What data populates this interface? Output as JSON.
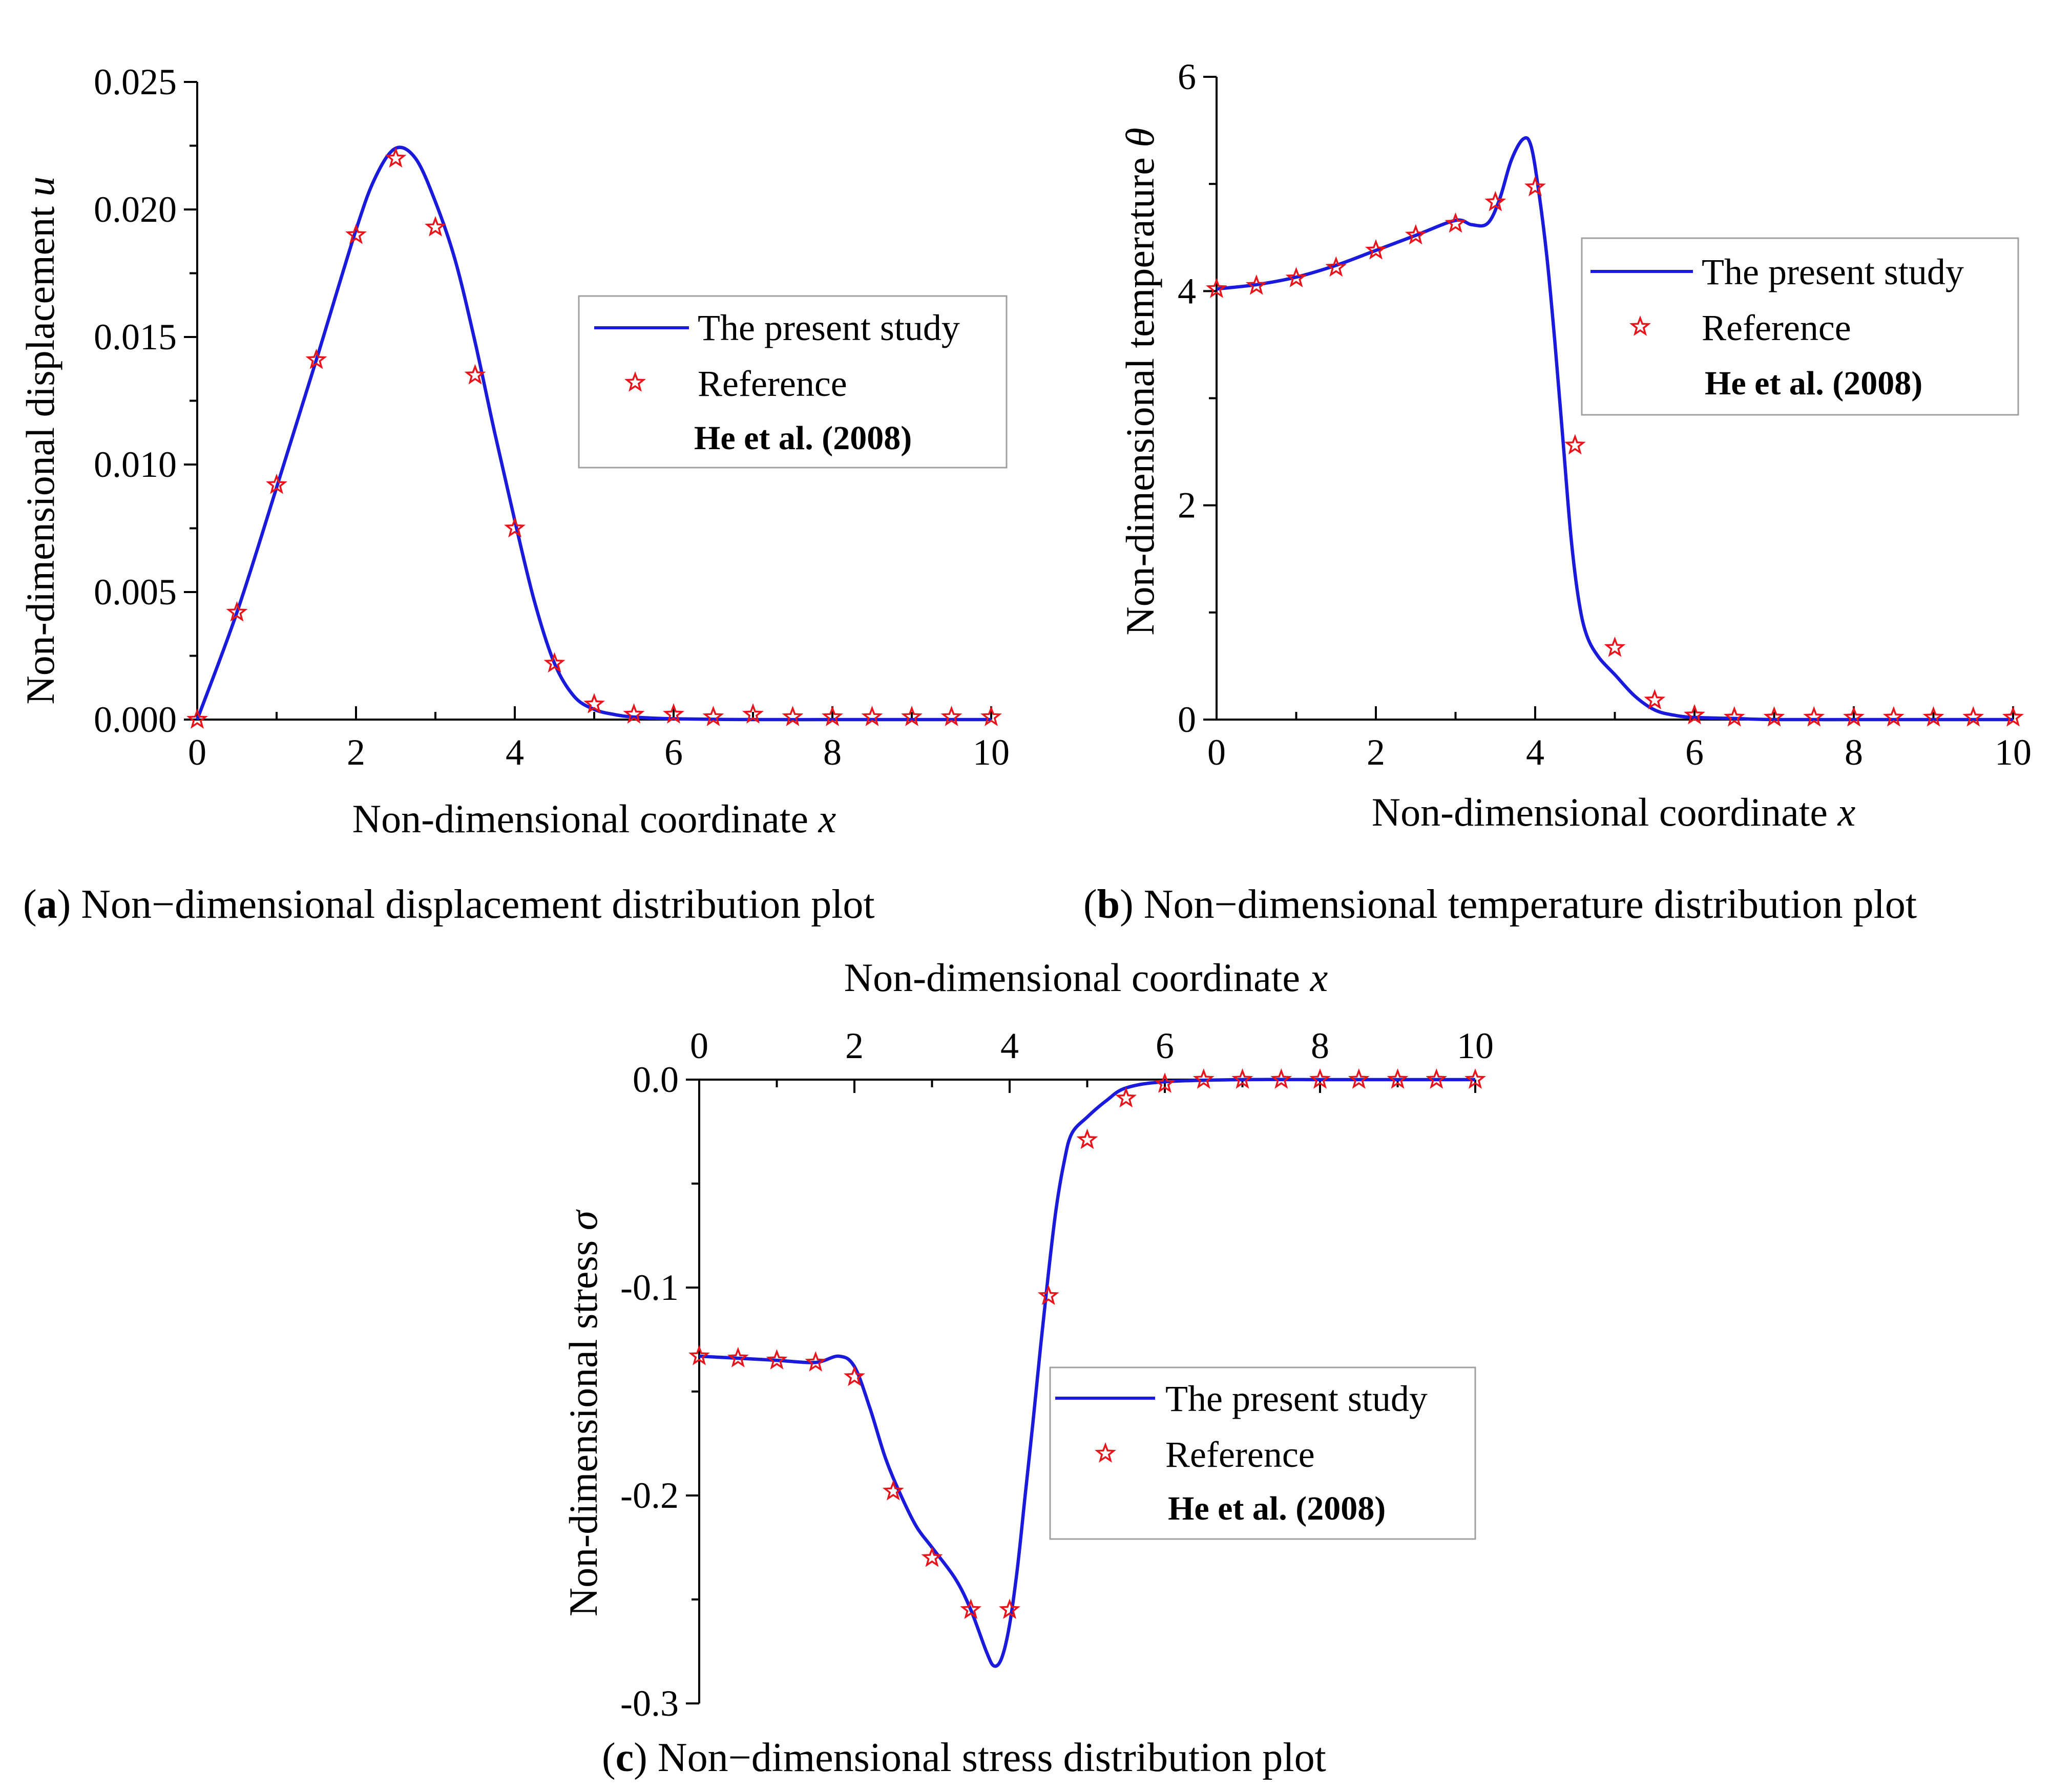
{
  "colors": {
    "line": "#1a1adc",
    "marker": "#e8131b",
    "axis": "#000000"
  },
  "chart_data": [
    {
      "id": "a",
      "type": "line",
      "title": "",
      "caption_letter": "a",
      "caption_text": "Non−dimensional displacement distribution plot",
      "xlabel": "Non-dimensional coordinate ",
      "xlabel_var": "x",
      "ylabel": "Non-dimensional displacement ",
      "ylabel_var": "u",
      "xlim": [
        0,
        10
      ],
      "ylim": [
        0,
        0.025
      ],
      "xticks": [
        0,
        2,
        4,
        6,
        8,
        10
      ],
      "xtick_labels": [
        "0",
        "2",
        "4",
        "6",
        "8",
        "10"
      ],
      "yticks": [
        0,
        0.005,
        0.01,
        0.015,
        0.02,
        0.025
      ],
      "ytick_labels": [
        "0.000",
        "0.005",
        "0.010",
        "0.015",
        "0.020",
        "0.025"
      ],
      "legend_position": "center-right",
      "series": [
        {
          "name": "The present study",
          "kind": "line",
          "x": [
            0,
            0.5,
            1,
            1.5,
            2,
            2.25,
            2.5,
            2.75,
            3,
            3.25,
            3.5,
            3.75,
            4,
            4.25,
            4.5,
            4.75,
            5,
            5.25,
            5.5,
            6,
            7,
            8,
            9,
            10
          ],
          "y": [
            0,
            0.0042,
            0.0091,
            0.0141,
            0.0192,
            0.0213,
            0.0224,
            0.022,
            0.0203,
            0.018,
            0.0148,
            0.0112,
            0.0078,
            0.0046,
            0.0022,
            0.0009,
            0.0004,
            0.0002,
            0.0001,
            3e-05,
            0,
            0,
            0,
            0
          ]
        },
        {
          "name": "Reference",
          "kind": "marker",
          "x": [
            0,
            0.5,
            1,
            1.5,
            2,
            2.5,
            3,
            3.5,
            4,
            4.5,
            5,
            5.5,
            6,
            6.5,
            7,
            7.5,
            8,
            8.5,
            9,
            9.5,
            10
          ],
          "y": [
            0,
            0.0042,
            0.0092,
            0.0141,
            0.019,
            0.022,
            0.0193,
            0.0135,
            0.0075,
            0.0022,
            0.0006,
            0.0002,
            0.0002,
            0.0001,
            0.0002,
            0.0001,
            0.0001,
            0.0001,
            0.0001,
            0.0001,
            0.0001
          ]
        }
      ],
      "legend": {
        "line_label": "The present study",
        "marker_label": "Reference",
        "note": "He et al. (2008)"
      }
    },
    {
      "id": "b",
      "type": "line",
      "title": "",
      "caption_letter": "b",
      "caption_text": "Non−dimensional temperature distribution plot",
      "xlabel": "Non-dimensional coordinate ",
      "xlabel_var": "x",
      "ylabel": "Non-dimensional temperature ",
      "ylabel_var": "θ",
      "xlim": [
        0,
        10
      ],
      "ylim": [
        0,
        6
      ],
      "xticks": [
        0,
        2,
        4,
        6,
        8,
        10
      ],
      "xtick_labels": [
        "0",
        "2",
        "4",
        "6",
        "8",
        "10"
      ],
      "yticks": [
        0,
        2,
        4,
        6
      ],
      "ytick_labels": [
        "0",
        "2",
        "4",
        "6"
      ],
      "legend_position": "top-right",
      "series": [
        {
          "name": "The present study",
          "kind": "line",
          "x": [
            0,
            0.5,
            1,
            1.5,
            2,
            2.5,
            3,
            3.2,
            3.4,
            3.55,
            3.7,
            3.85,
            3.95,
            4.05,
            4.15,
            4.25,
            4.35,
            4.45,
            4.55,
            4.65,
            4.8,
            5,
            5.25,
            5.5,
            5.75,
            6,
            6.5,
            7,
            8,
            9,
            10
          ],
          "y": [
            4.02,
            4.06,
            4.13,
            4.24,
            4.38,
            4.52,
            4.66,
            4.62,
            4.63,
            4.85,
            5.22,
            5.42,
            5.35,
            4.9,
            4.3,
            3.5,
            2.6,
            1.7,
            1.1,
            0.78,
            0.58,
            0.42,
            0.22,
            0.09,
            0.04,
            0.02,
            0.01,
            0,
            0,
            0,
            0
          ]
        },
        {
          "name": "Reference",
          "kind": "marker",
          "x": [
            0,
            0.5,
            1,
            1.5,
            2,
            2.5,
            3,
            3.5,
            4,
            4.5,
            5,
            5.5,
            6,
            6.5,
            7,
            7.5,
            8,
            8.5,
            9,
            9.5,
            10
          ],
          "y": [
            4.02,
            4.05,
            4.12,
            4.22,
            4.38,
            4.52,
            4.63,
            4.83,
            4.97,
            2.56,
            0.67,
            0.18,
            0.04,
            0.02,
            0.02,
            0.02,
            0.02,
            0.02,
            0.02,
            0.02,
            0.02
          ]
        }
      ],
      "legend": {
        "line_label": "The present study",
        "marker_label": "Reference",
        "note": "He et al. (2008)"
      }
    },
    {
      "id": "c",
      "type": "line",
      "title": "",
      "caption_letter": "c",
      "caption_text": "Non−dimensional stress distribution plot",
      "xlabel": "Non-dimensional coordinate ",
      "xlabel_var": "x",
      "ylabel": "Non-dimensional stress ",
      "ylabel_var": "σ",
      "xlim": [
        0,
        10
      ],
      "ylim": [
        -0.3,
        0
      ],
      "xticks": [
        0,
        2,
        4,
        6,
        8,
        10
      ],
      "xtick_labels": [
        "0",
        "2",
        "4",
        "6",
        "8",
        "10"
      ],
      "yticks": [
        0,
        -0.1,
        -0.2,
        -0.3
      ],
      "ytick_labels": [
        "0.0",
        "-0.1",
        "-0.2",
        "-0.3"
      ],
      "x_axis_position": "top",
      "legend_position": "bottom-right",
      "series": [
        {
          "name": "The present study",
          "kind": "line",
          "x": [
            0,
            0.5,
            1,
            1.5,
            1.8,
            2.0,
            2.2,
            2.4,
            2.6,
            2.8,
            3,
            3.3,
            3.5,
            3.7,
            3.8,
            3.9,
            4.0,
            4.1,
            4.2,
            4.3,
            4.4,
            4.5,
            4.6,
            4.7,
            4.8,
            5,
            5.25,
            5.5,
            6,
            7,
            8,
            9,
            10
          ],
          "y": [
            -0.133,
            -0.134,
            -0.135,
            -0.136,
            -0.133,
            -0.138,
            -0.158,
            -0.182,
            -0.2,
            -0.215,
            -0.225,
            -0.24,
            -0.255,
            -0.275,
            -0.282,
            -0.278,
            -0.262,
            -0.235,
            -0.2,
            -0.165,
            -0.128,
            -0.093,
            -0.062,
            -0.04,
            -0.026,
            -0.018,
            -0.01,
            -0.004,
            -0.001,
            0,
            0,
            0,
            0
          ]
        },
        {
          "name": "Reference",
          "kind": "marker",
          "x": [
            0,
            0.5,
            1,
            1.5,
            2,
            2.5,
            3,
            3.5,
            4,
            4.5,
            5,
            5.5,
            6,
            6.5,
            7,
            7.5,
            8,
            8.5,
            9,
            9.5,
            10
          ],
          "y": [
            -0.133,
            -0.134,
            -0.135,
            -0.136,
            -0.143,
            -0.198,
            -0.23,
            -0.255,
            -0.255,
            -0.104,
            -0.029,
            -0.009,
            -0.002,
            0,
            0,
            0,
            0,
            0,
            0,
            0,
            0
          ]
        }
      ],
      "legend": {
        "line_label": "The present study",
        "marker_label": "Reference",
        "note": "He et al. (2008)"
      }
    }
  ]
}
